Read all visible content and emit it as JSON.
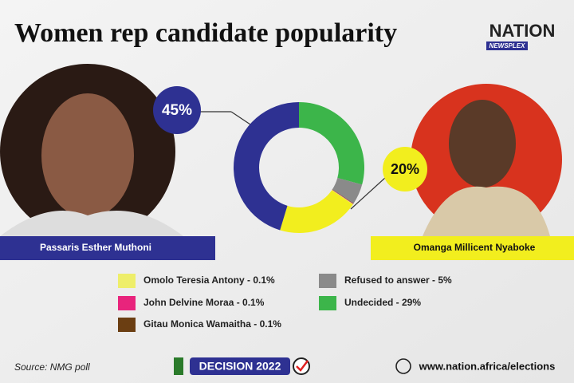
{
  "chart_data": {
    "type": "donut",
    "title": "Women rep candidate popularity",
    "logo": "NATION",
    "logo_sub": "NEWSPLEX",
    "categories": [
      "Passaris Esther Muthoni",
      "Omanga Millicent Nyaboke",
      "Omolo Teresia Antony - 0.1%",
      "John Delvine Moraa - 0.1%",
      "Gitau Monica Wamaitha - 0.1%",
      "Refused to answer - 5%",
      "Undecided - 29%"
    ],
    "values": [
      45,
      20,
      0.1,
      0.1,
      0.1,
      5,
      29
    ],
    "value_labels": [
      "45%",
      "20%",
      null,
      null,
      null,
      null,
      null
    ],
    "colors": [
      "#2e3192",
      "#f2ee1e",
      "#eeee6a",
      "#e8247c",
      "#6b3e12",
      "#8a8a8a",
      "#3cb54a"
    ],
    "source": "Source: NMG poll",
    "badge": "DECISION 2022",
    "url": "www.nation.africa/elections"
  }
}
